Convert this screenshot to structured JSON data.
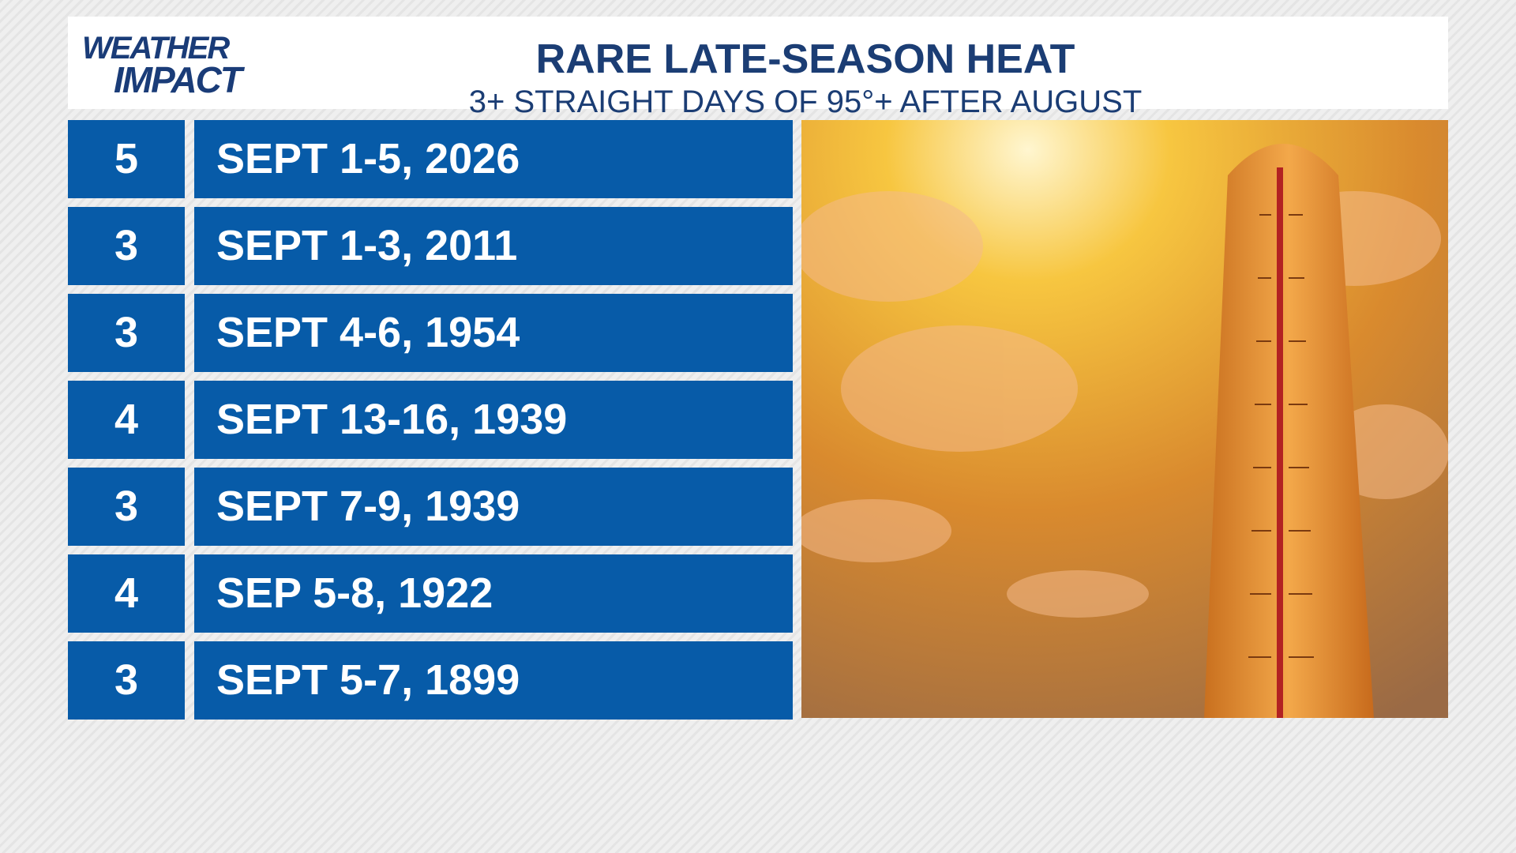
{
  "header": {
    "logo": [
      "WEATHER",
      "IMPACT"
    ],
    "title": "RARE LATE-SEASON HEAT",
    "subtitle": "3+ STRAIGHT DAYS OF 95°+ AFTER AUGUST"
  },
  "table": {
    "rows": [
      [
        "5",
        "SEPT 1-5, 2026"
      ],
      [
        "3",
        "SEPT 1-3, 2011"
      ],
      [
        "3",
        "SEPT 4-6, 1954"
      ],
      [
        "4",
        "SEPT 13-16, 1939"
      ],
      [
        "3",
        "SEPT 7-9, 1939"
      ],
      [
        "4",
        "SEP 5-8, 1922"
      ],
      [
        "3",
        "SEPT 5-7, 1899"
      ]
    ]
  }
}
